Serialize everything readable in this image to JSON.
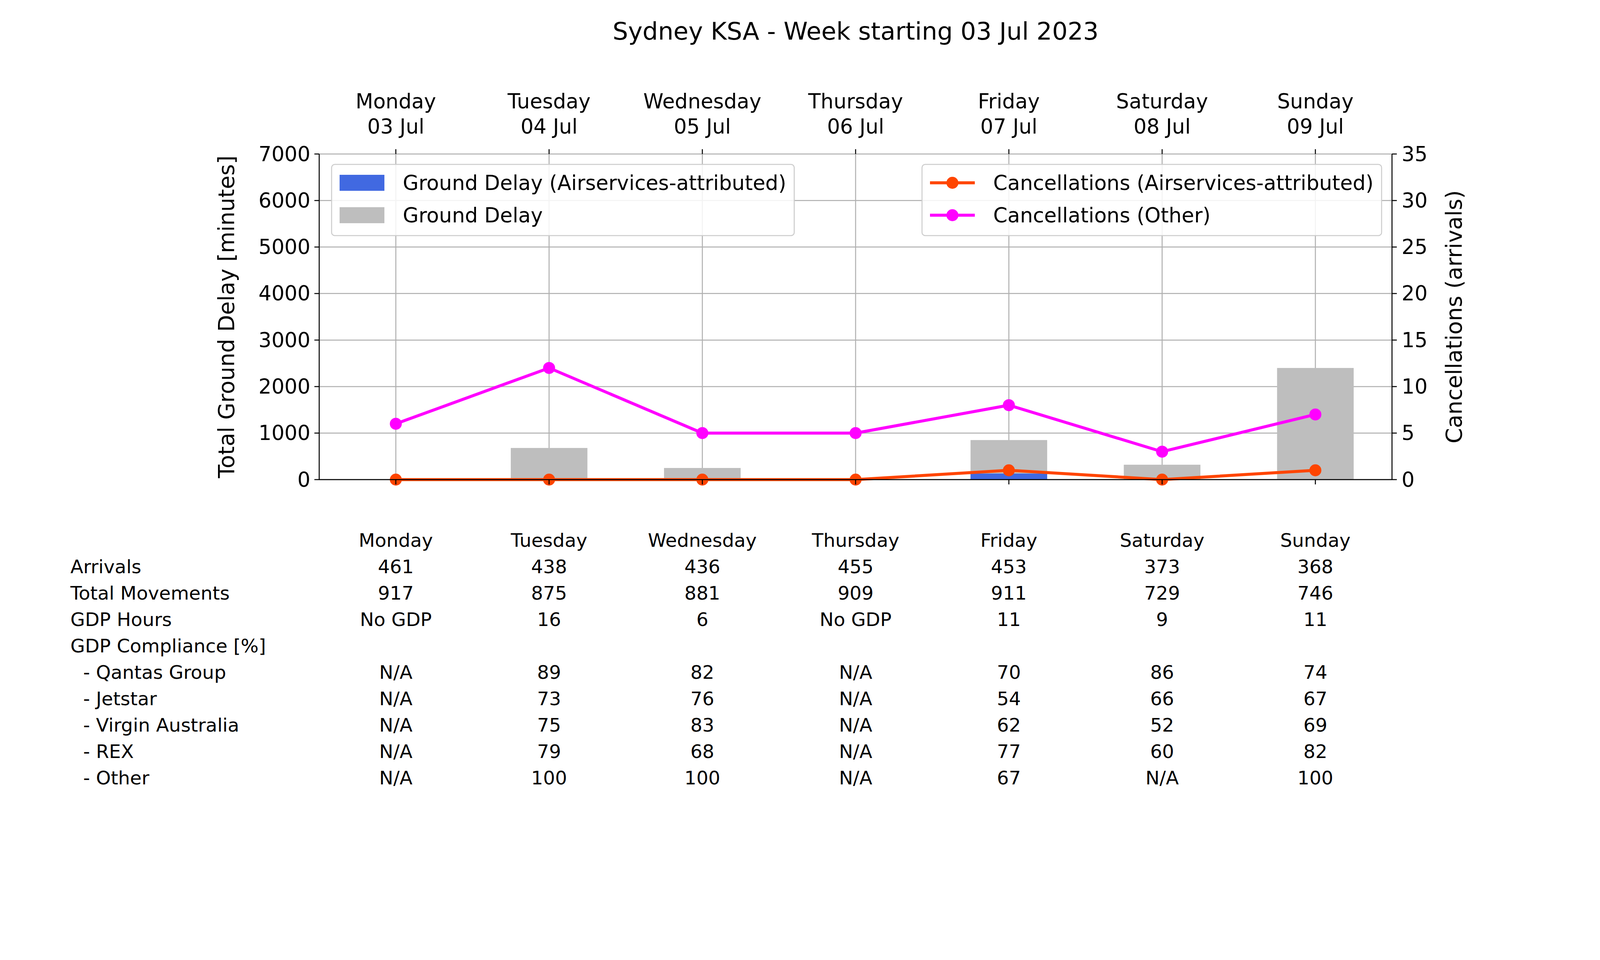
{
  "chart_data": {
    "type": "bar",
    "title": "Sydney KSA - Week starting 03 Jul 2023",
    "y_label": "Total Ground Delay [minutes]",
    "y2_label": "Cancellations (arrivals)",
    "categories": [
      "Monday\n03 Jul",
      "Tuesday\n04 Jul",
      "Wednesday\n05 Jul",
      "Thursday\n06 Jul",
      "Friday\n07 Jul",
      "Saturday\n08 Jul",
      "Sunday\n09 Jul"
    ],
    "series": [
      {
        "name": "Ground Delay (Airservices-attributed)",
        "type": "bar",
        "color": "#4169e1",
        "values": [
          0,
          0,
          0,
          0,
          130,
          0,
          0
        ]
      },
      {
        "name": "Ground Delay",
        "type": "bar",
        "color": "#bebebe",
        "values": [
          0,
          680,
          250,
          0,
          850,
          320,
          2400
        ]
      },
      {
        "name": "Cancellations (Airservices-attributed)",
        "type": "line",
        "axis": "y2",
        "color": "#ff4500",
        "marker": "circle",
        "values": [
          0,
          0,
          0,
          0,
          1,
          0,
          1
        ]
      },
      {
        "name": "Cancellations (Other)",
        "type": "line",
        "axis": "y2",
        "color": "#ff00ff",
        "marker": "circle",
        "values": [
          6,
          12,
          5,
          5,
          8,
          3,
          7
        ]
      }
    ],
    "ylim": [
      0,
      7000
    ],
    "yticks": [
      0,
      1000,
      2000,
      3000,
      4000,
      5000,
      6000,
      7000
    ],
    "y2lim": [
      0,
      35
    ],
    "y2ticks": [
      0,
      5,
      10,
      15,
      20,
      25,
      30,
      35
    ],
    "grid": true,
    "legend": "upper left"
  },
  "table": {
    "columns": [
      "Monday",
      "Tuesday",
      "Wednesday",
      "Thursday",
      "Friday",
      "Saturday",
      "Sunday"
    ],
    "rows": [
      {
        "label": "Arrivals",
        "values": [
          461,
          438,
          436,
          455,
          453,
          373,
          368
        ]
      },
      {
        "label": "Total Movements",
        "values": [
          917,
          875,
          881,
          909,
          911,
          729,
          746
        ]
      },
      {
        "label": "GDP Hours",
        "values": [
          "No GDP",
          16,
          6,
          "No GDP",
          11,
          9,
          11
        ]
      },
      {
        "label": "GDP Compliance [%]",
        "rows": [
          {
            "label": "- Qantas Group",
            "values": [
              "N/A",
              89,
              82,
              "N/A",
              70,
              86,
              74
            ]
          },
          {
            "label": "- Jetstar",
            "values": [
              "N/A",
              73,
              76,
              "N/A",
              54,
              66,
              67
            ]
          },
          {
            "label": "- Virgin Australia",
            "values": [
              "N/A",
              75,
              83,
              "N/A",
              62,
              52,
              69
            ]
          },
          {
            "label": "- REX",
            "values": [
              "N/A",
              79,
              68,
              "N/A",
              77,
              60,
              82
            ]
          },
          {
            "label": "- Other",
            "values": [
              "N/A",
              100,
              100,
              "N/A",
              67,
              "N/A",
              100
            ]
          }
        ]
      }
    ]
  }
}
